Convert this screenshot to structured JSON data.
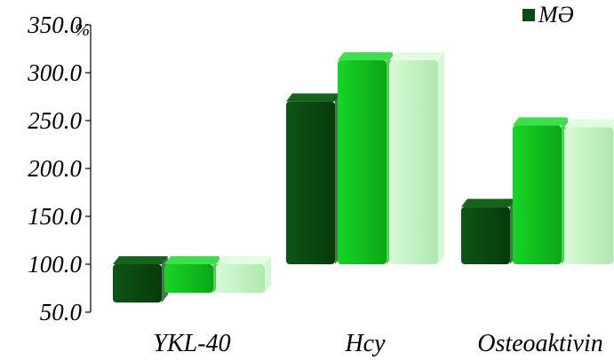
{
  "chart_data": {
    "type": "bar",
    "style": "3d-rounded",
    "categories": [
      "YKL-40",
      "Hcy",
      "Osteoaktivin"
    ],
    "baseline": 100,
    "ylim": [
      50,
      350
    ],
    "y_ticks": [
      "50.0",
      "100.0",
      "150.0",
      "200.0",
      "250.0",
      "300.0",
      "350.0"
    ],
    "ylabel": "%",
    "grid": false,
    "legend_position": "top-right",
    "series": [
      {
        "name": "MƏ",
        "color": "#0b4a12",
        "top_color": "#16641c",
        "values": [
          60,
          270,
          160
        ]
      },
      {
        "name": "",
        "color": "#0fc41c",
        "top_color": "#3be04a",
        "values": [
          70,
          313,
          245
        ]
      },
      {
        "name": "",
        "color": "#c4f5c4",
        "top_color": "#e2fce2",
        "values": [
          70,
          313,
          243
        ]
      }
    ]
  }
}
